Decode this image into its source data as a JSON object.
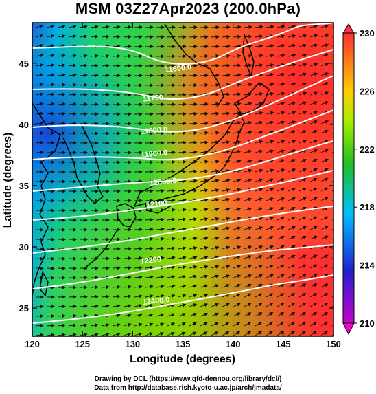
{
  "title": "MSM 03Z27Apr2023 (200.0hPa)",
  "xlabel": "Longitude (degrees)",
  "ylabel": "Latitude  (degrees)",
  "x_ticks": [
    "120",
    "125",
    "130",
    "135",
    "140",
    "145",
    "150"
  ],
  "y_ticks": [
    "25",
    "30",
    "35",
    "40",
    "45"
  ],
  "colorbar": {
    "ticks": [
      "210",
      "214",
      "218",
      "222",
      "226",
      "230"
    ],
    "min": 210,
    "max": 230,
    "stops": [
      "#cc00cc",
      "#2020d0",
      "#00bfff",
      "#20c020",
      "#aaee00",
      "#ffcc00",
      "#ff3030"
    ]
  },
  "contours": [
    {
      "value": 11600,
      "label": "11600.0"
    },
    {
      "value": 11700,
      "label": "11700."
    },
    {
      "value": 11800,
      "label": "11800.0"
    },
    {
      "value": 11900,
      "label": "11900.0"
    },
    {
      "value": 12000,
      "label": "12000.0"
    },
    {
      "value": 12100,
      "label": "12100."
    },
    {
      "value": 12200,
      "label": "12200"
    },
    {
      "value": 12300,
      "label": "12300."
    },
    {
      "value": 12400,
      "label": "12400.0"
    }
  ],
  "credits": {
    "line1": "Drawing by DCL (https://www.gfd-dennou.org/library/dcl/)",
    "line2": "Data from http://database.rish.kyoto-u.ac.jp/arch/jmadata/"
  },
  "colors": {
    "contour": "#ffffff",
    "coast": "#000000",
    "arrow": "#111111"
  }
}
